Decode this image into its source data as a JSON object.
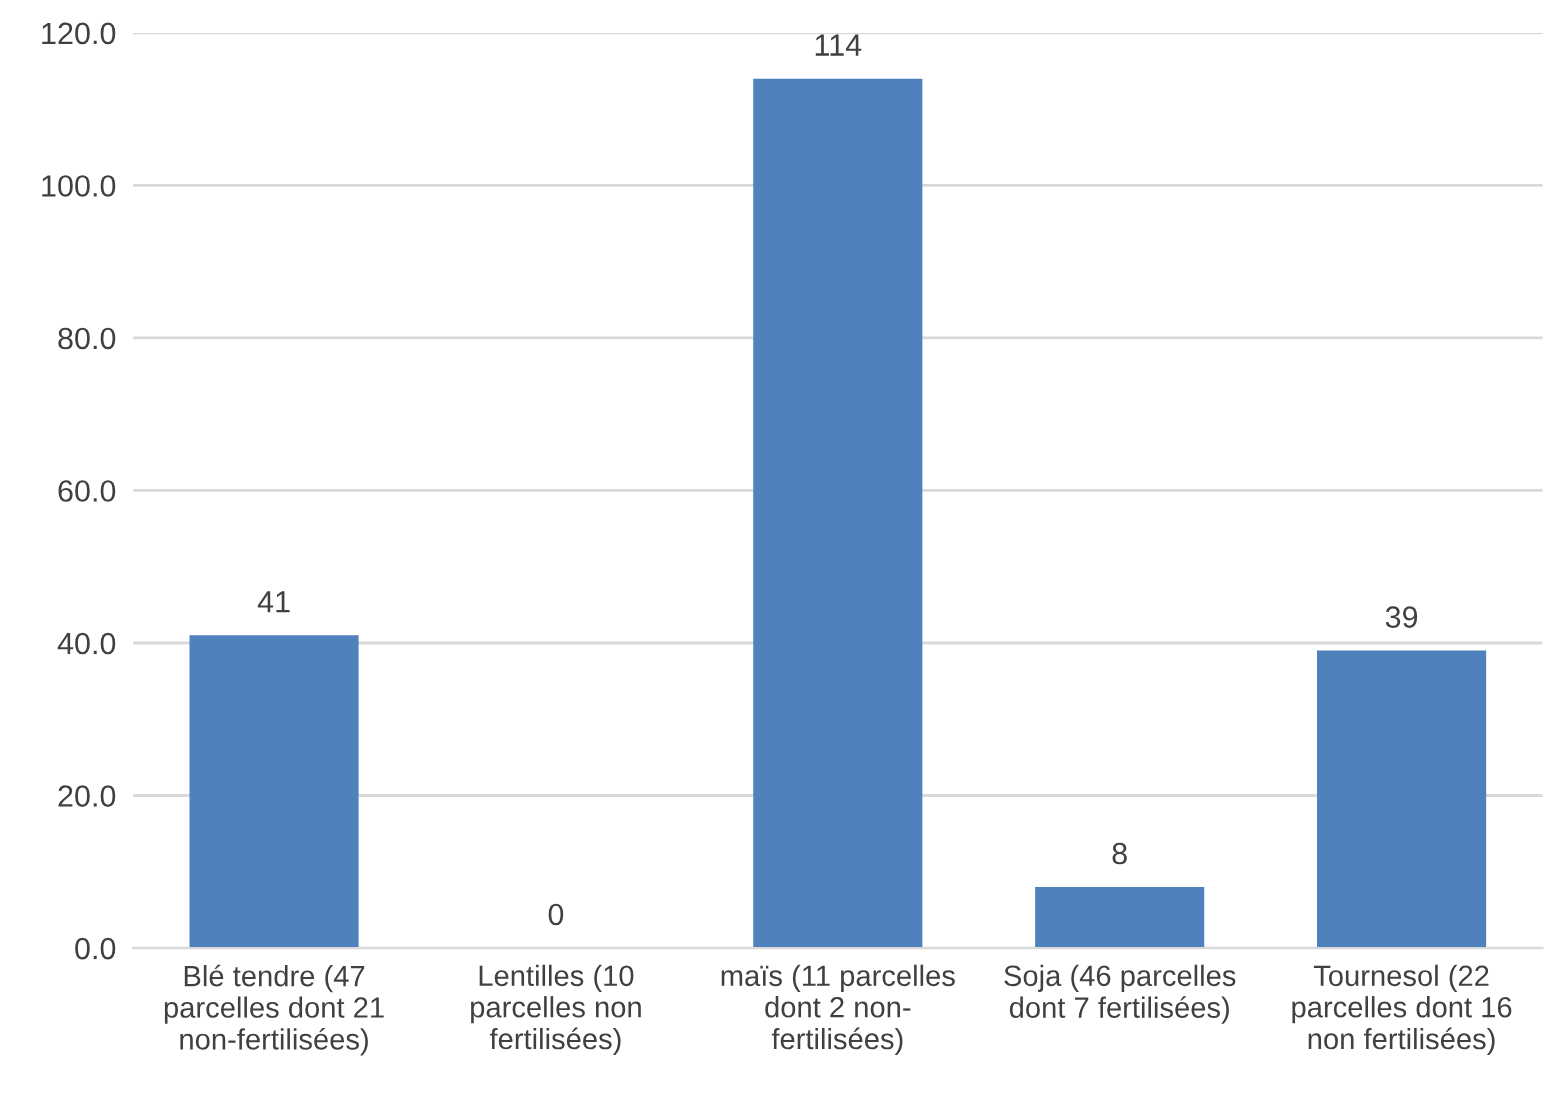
{
  "chart_data": {
    "type": "bar",
    "categories": [
      "Blé tendre (47\nparcelles dont 21\nnon-fertilisées)",
      "Lentilles (10\nparcelles non\nfertilisées)",
      "maïs (11 parcelles\ndont 2 non-\nfertilisées)",
      "Soja (46 parcelles\ndont 7 fertilisées)",
      "Tournesol (22\nparcelles dont 16\nnon fertilisées)"
    ],
    "values": [
      41,
      0,
      114,
      8,
      39
    ],
    "color": "#4f81bd",
    "ylim": [
      0,
      120
    ],
    "yticks": [
      {
        "value": 0,
        "label": "0.0"
      },
      {
        "value": 20,
        "label": "20.0"
      },
      {
        "value": 40,
        "label": "40.0"
      },
      {
        "value": 60,
        "label": "60.0"
      },
      {
        "value": 80,
        "label": "80.0"
      },
      {
        "value": 100,
        "label": "100.0"
      },
      {
        "value": 120,
        "label": "120.0"
      }
    ],
    "grid": "y",
    "data_labels": true
  }
}
